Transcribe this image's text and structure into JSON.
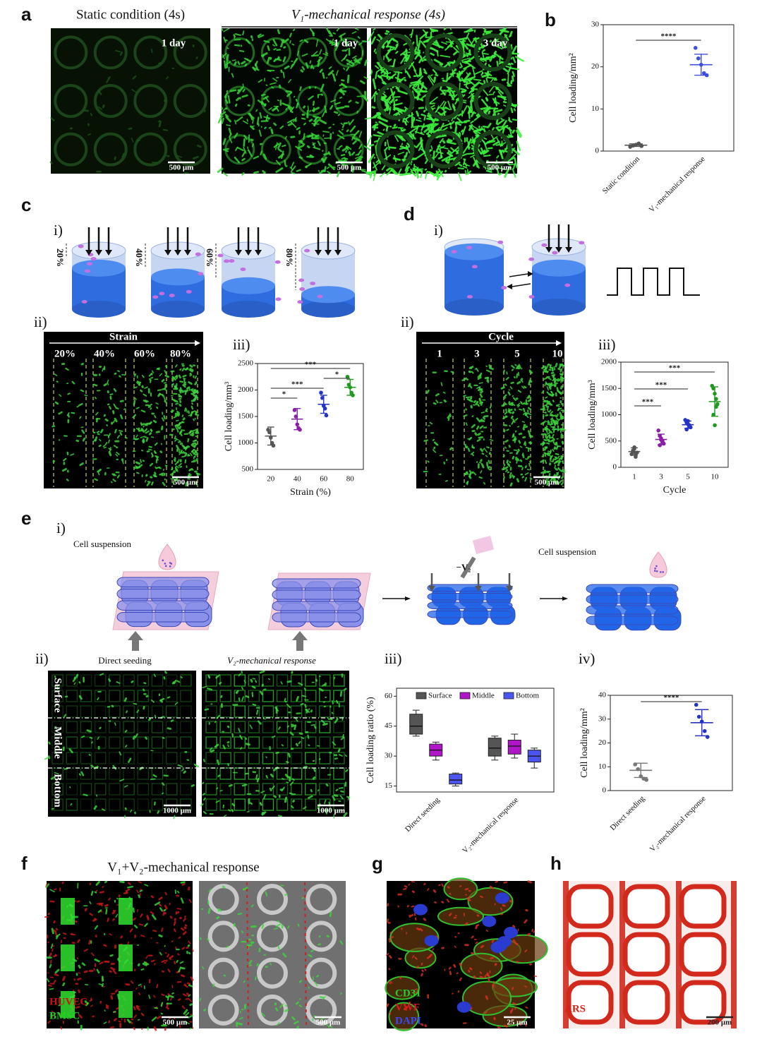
{
  "panels": {
    "labels": [
      "a",
      "b",
      "c",
      "d",
      "e",
      "f",
      "g",
      "h"
    ],
    "a": {
      "titles": [
        "Static condition (4s)",
        "V₁-mechanical response (4s)"
      ],
      "days": [
        "1 day",
        "1 day",
        "3 day"
      ],
      "scale": [
        "500 μm",
        "500 μm",
        "500 μm"
      ]
    },
    "c": {
      "steps": [
        "i)",
        "ii)",
        "iii)"
      ],
      "compress": [
        "20%",
        "40%",
        "60%",
        "80%"
      ],
      "axis": "Strain",
      "strains": [
        "20%",
        "40%",
        "60%",
        "80%"
      ],
      "scale": "500 μm"
    },
    "d": {
      "steps": [
        "i)",
        "ii)",
        "iii)"
      ],
      "axis": "Cycle",
      "cycles": [
        "1",
        "3",
        "5",
        "10"
      ],
      "scale": "500 μm"
    },
    "e": {
      "steps": [
        "i)",
        "ii)",
        "iii)",
        "iv)"
      ],
      "suspension": [
        "Cell suspension",
        "Cell suspension"
      ],
      "remove": "−V₂",
      "seeding": [
        "Direct seeding",
        "V₂-mechanical response"
      ],
      "layers": [
        "Surface",
        "Middle",
        "Bottom"
      ],
      "scale": [
        "1000 μm",
        "1000 μm"
      ]
    },
    "f": {
      "title": "V₁+V₂-mechanical response",
      "stains": [
        "HUVEC",
        "BMSC"
      ],
      "scale": [
        "500 μm",
        "500 μm"
      ]
    },
    "g": {
      "stains": [
        "CD31",
        "VWF",
        "DAPI"
      ],
      "scale": "25 μm"
    },
    "h": {
      "stain": "ARS",
      "scale": "200 μm"
    }
  },
  "chart_data": [
    {
      "type": "dotplot",
      "ylabel": "Cell loading/mm²",
      "categories": [
        "Static condition",
        "V₁-mechanical response"
      ],
      "groups": [
        {
          "color": "#555555",
          "points": [
            1.0,
            1.3,
            1.5,
            1.8,
            1.2
          ],
          "mean": 1.4,
          "sd": 0.3
        },
        {
          "color": "#3f4fe0",
          "points": [
            24.5,
            22,
            20.5,
            18.5,
            18
          ],
          "mean": 20.5,
          "sd": 2.5
        }
      ],
      "ylim": [
        0,
        30
      ],
      "yticks": [
        0,
        10,
        20,
        30
      ],
      "significance": [
        {
          "label": "****",
          "pair": [
            0,
            1
          ]
        }
      ]
    },
    {
      "type": "dotplot",
      "ylabel": "Cell loading/mm³",
      "xlabel": "Strain (%)",
      "categories": [
        "20",
        "40",
        "60",
        "80"
      ],
      "groups": [
        {
          "color": "#555555",
          "points": [
            1250,
            1200,
            1100,
            1000,
            950
          ],
          "mean": 1130,
          "sd": 170
        },
        {
          "color": "#8b1fa8",
          "points": [
            1620,
            1500,
            1350,
            1280,
            1250
          ],
          "mean": 1450,
          "sd": 200
        },
        {
          "color": "#2432c8",
          "points": [
            1950,
            1850,
            1700,
            1650,
            1520
          ],
          "mean": 1730,
          "sd": 170
        },
        {
          "color": "#1f9a1f",
          "points": [
            2250,
            2100,
            2050,
            1950,
            1900
          ],
          "mean": 2050,
          "sd": 150
        }
      ],
      "ylim": [
        500,
        2500
      ],
      "yticks": [
        500,
        1000,
        1500,
        2000,
        2500
      ],
      "significance": [
        {
          "label": "***",
          "pair": [
            0,
            3
          ]
        },
        {
          "label": "*",
          "pair": [
            2,
            3
          ]
        },
        {
          "label": "***",
          "pair": [
            0,
            2
          ]
        },
        {
          "label": "*",
          "pair": [
            0,
            1
          ]
        }
      ]
    },
    {
      "type": "dotplot",
      "ylabel": "Cell loading/mm³",
      "xlabel": "Cycle",
      "categories": [
        "1",
        "3",
        "5",
        "10"
      ],
      "groups": [
        {
          "color": "#555555",
          "points": [
            250,
            300,
            350,
            200,
            280,
            320,
            380,
            260
          ],
          "mean": 300,
          "sd": 70
        },
        {
          "color": "#8b1fa8",
          "points": [
            700,
            600,
            550,
            500,
            450,
            420,
            520,
            480
          ],
          "mean": 530,
          "sd": 100
        },
        {
          "color": "#2432c8",
          "points": [
            900,
            850,
            820,
            780,
            760,
            720,
            880,
            800
          ],
          "mean": 810,
          "sd": 70
        },
        {
          "color": "#1f9a1f",
          "points": [
            1550,
            1500,
            1400,
            1300,
            1200,
            1000,
            800,
            1150
          ],
          "mean": 1250,
          "sd": 280
        }
      ],
      "ylim": [
        0,
        2000
      ],
      "yticks": [
        0,
        500,
        1000,
        1500,
        2000
      ],
      "significance": [
        {
          "label": "***",
          "pair": [
            0,
            3
          ]
        },
        {
          "label": "***",
          "pair": [
            0,
            2
          ]
        },
        {
          "label": "***",
          "pair": [
            0,
            1
          ]
        }
      ]
    },
    {
      "type": "box",
      "ylabel": "Cell loading ratio (%)",
      "categories": [
        "Direct seeding",
        "V₂-mechanical response"
      ],
      "series": [
        {
          "name": "Surface",
          "color": "#555555",
          "boxes": [
            [
              40,
              41,
              45,
              51,
              53
            ],
            [
              28,
              30,
              34,
              39,
              40
            ]
          ]
        },
        {
          "name": "Middle",
          "color": "#b016c8",
          "boxes": [
            [
              28,
              30,
              33,
              36,
              37
            ],
            [
              29,
              31,
              35,
              38,
              41
            ]
          ]
        },
        {
          "name": "Bottom",
          "color": "#4d55f0",
          "boxes": [
            [
              15,
              16,
              18,
              21,
              21.5
            ],
            [
              24,
              27,
              30,
              33,
              34
            ]
          ]
        }
      ],
      "ylim": [
        12,
        64
      ],
      "yticks": [
        15,
        30,
        45,
        60
      ]
    },
    {
      "type": "dotplot",
      "ylabel": "Cell loading/mm²",
      "categories": [
        "Direct seeding",
        "V₂-mechanical response"
      ],
      "groups": [
        {
          "color": "#777777",
          "points": [
            11,
            9,
            6,
            5,
            4.5
          ],
          "mean": 8.5,
          "sd": 3
        },
        {
          "color": "#2432c8",
          "points": [
            36,
            31,
            29,
            25,
            22.5
          ],
          "mean": 28.5,
          "sd": 5.5
        }
      ],
      "ylim": [
        0,
        40
      ],
      "yticks": [
        0,
        10,
        20,
        30,
        40
      ],
      "significance": [
        {
          "label": "****",
          "pair": [
            0,
            1
          ]
        }
      ]
    }
  ]
}
